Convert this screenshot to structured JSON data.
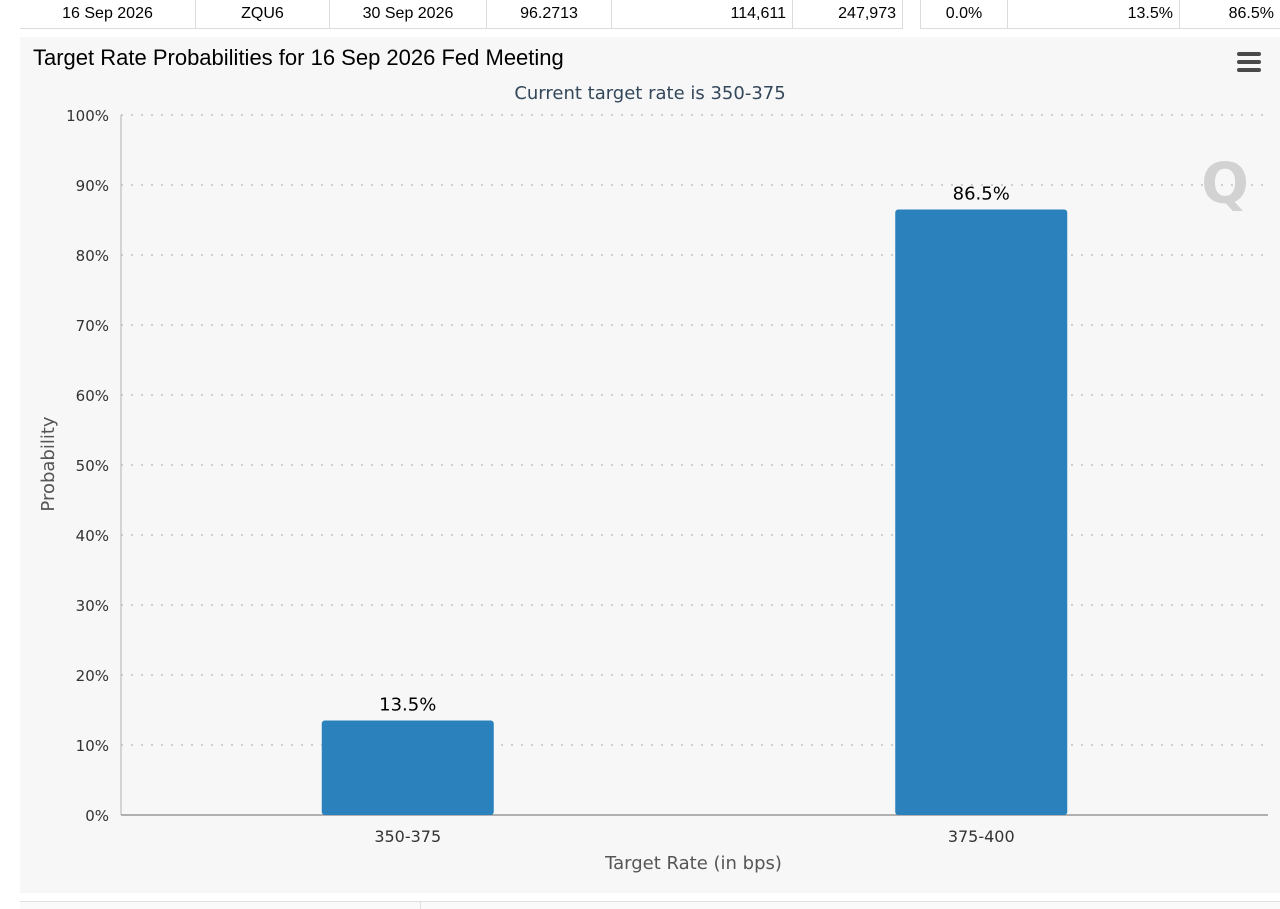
{
  "table_row": {
    "cells": [
      "16 Sep 2026",
      "ZQU6",
      "30 Sep 2026",
      "96.2713",
      "114,611",
      "247,973",
      "0.0%",
      "13.5%",
      "86.5%"
    ]
  },
  "chart_data": {
    "type": "bar",
    "title": "Target Rate Probabilities for 16 Sep 2026 Fed Meeting",
    "subtitle": "Current target rate is 350-375",
    "xlabel": "Target Rate (in bps)",
    "ylabel": "Probability",
    "categories": [
      "350-375",
      "375-400"
    ],
    "values": [
      13.5,
      86.5
    ],
    "data_labels": [
      "13.5%",
      "86.5%"
    ],
    "ylim": [
      0,
      100
    ],
    "yticks": [
      "0%",
      "10%",
      "20%",
      "30%",
      "40%",
      "50%",
      "60%",
      "70%",
      "80%",
      "90%",
      "100%"
    ],
    "grid": "dotted horizontal",
    "bar_color": "#2a81bb",
    "watermark": "Q"
  }
}
